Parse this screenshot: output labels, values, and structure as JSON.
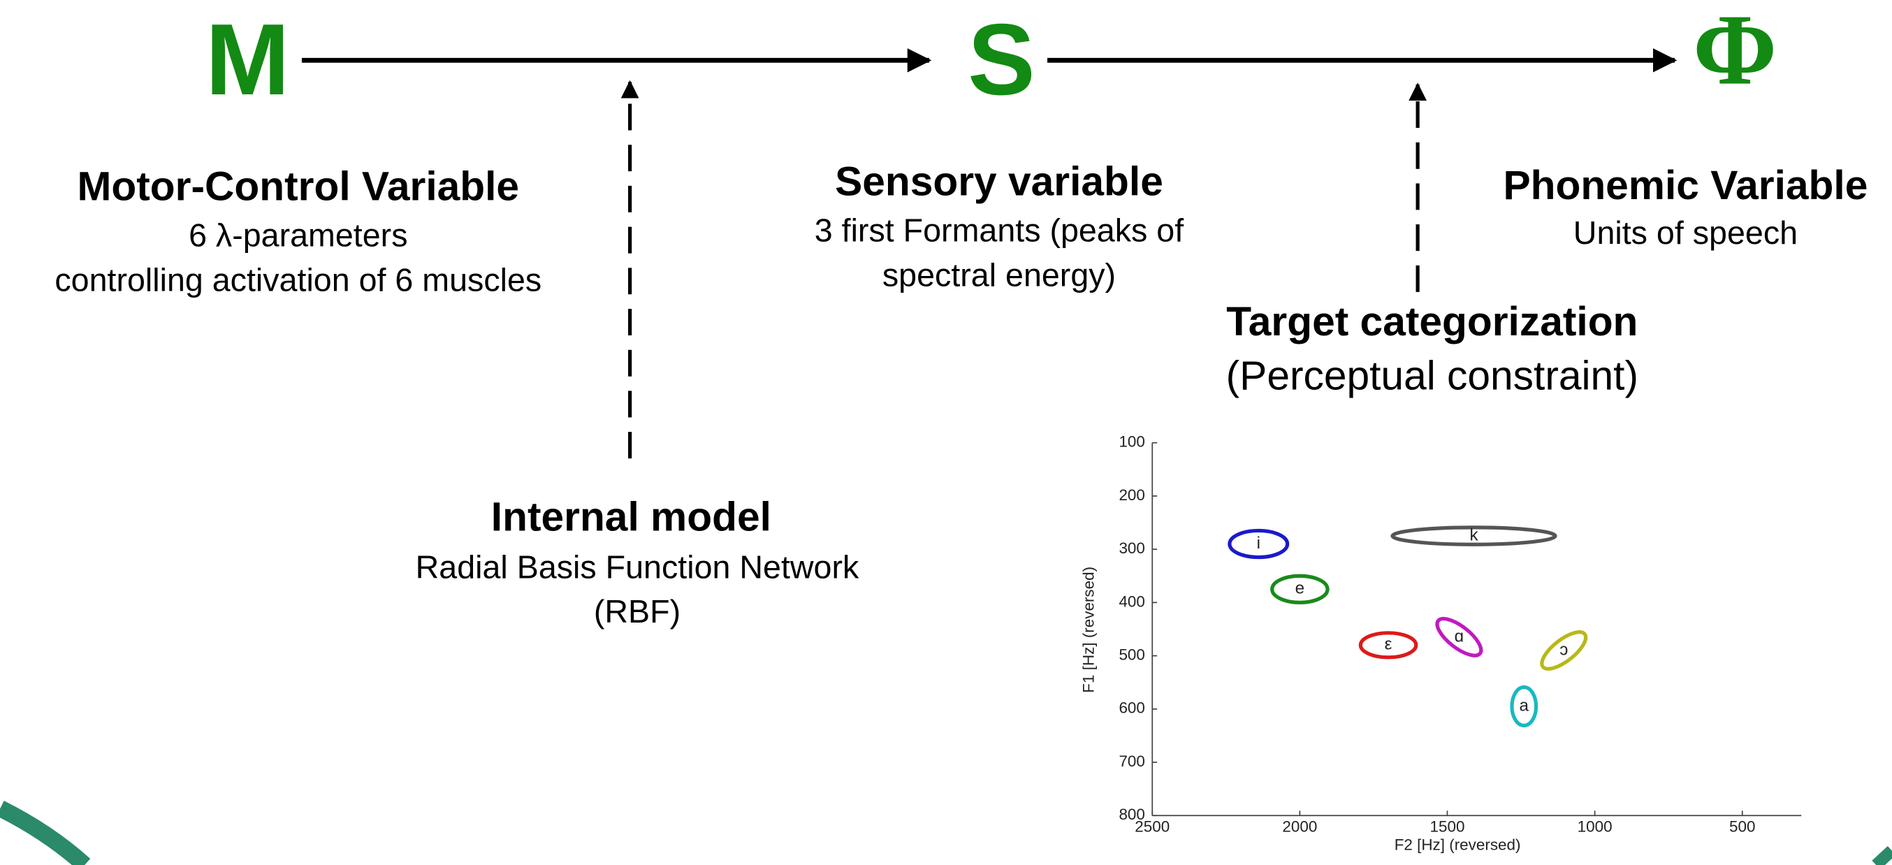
{
  "nodes": [
    {
      "symbol": "M",
      "title": "Motor-Control Variable",
      "lines": [
        "6 λ-parameters",
        "controlling activation of 6 muscles"
      ]
    },
    {
      "symbol": "S",
      "title": "Sensory variable",
      "lines": [
        "3 first Formants (peaks of",
        "spectral energy)"
      ]
    },
    {
      "symbol": "Φ",
      "title": "Phonemic Variable",
      "lines": [
        "Units of speech"
      ]
    }
  ],
  "internal_model": {
    "title": "Internal model",
    "lines": [
      "Radial Basis Function Network",
      "(RBF)"
    ]
  },
  "target": {
    "title": "Target categorization",
    "subtitle": "(Perceptual constraint)"
  },
  "formant_chart": {
    "x_label": "F2 [Hz] (reversed)",
    "y_label": "F1 [Hz] (reversed)",
    "xlim": [
      2500,
      300
    ],
    "ylim": [
      100,
      800
    ],
    "xticks": [
      2500,
      2000,
      1500,
      1000,
      500
    ],
    "yticks": [
      100,
      200,
      300,
      400,
      500,
      600,
      700,
      800
    ],
    "vowels": [
      {
        "label": "i",
        "color": "#1a1acc",
        "f2": 2140,
        "f1": 290,
        "f2_radius": 98,
        "f1_radius": 25,
        "angle": 0
      },
      {
        "label": "e",
        "color": "#1a8a1a",
        "f2": 2000,
        "f1": 375,
        "f2_radius": 94,
        "f1_radius": 25,
        "angle": 0
      },
      {
        "label": "k",
        "color": "#555555",
        "f2": 1410,
        "f1": 275,
        "f2_radius": 276,
        "f1_radius": 16,
        "angle": 0
      },
      {
        "label": "ε",
        "color": "#dd1a1a",
        "f2": 1700,
        "f1": 480,
        "f2_radius": 94,
        "f1_radius": 23,
        "angle": 0
      },
      {
        "label": "ɑ",
        "color": "#c01ac0",
        "f2": 1460,
        "f1": 465,
        "f2_radius": 90,
        "f1_radius": 20,
        "angle": 38
      },
      {
        "label": "ɔ",
        "color": "#b8b81a",
        "f2": 1105,
        "f1": 490,
        "f2_radius": 90,
        "f1_radius": 20,
        "angle": -38
      },
      {
        "label": "a",
        "color": "#1ab8c0",
        "f2": 1240,
        "f1": 595,
        "f2_radius": 41,
        "f1_radius": 36,
        "angle": 0
      }
    ]
  }
}
